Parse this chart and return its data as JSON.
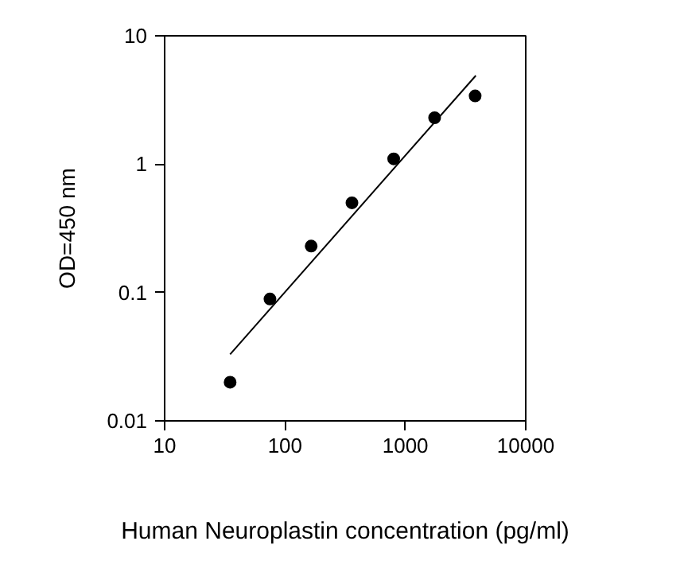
{
  "chart_data": {
    "type": "scatter",
    "xlabel": "Human Neuroplastin concentration (pg/ml)",
    "ylabel": "OD=450 nm",
    "log": "xy",
    "grid": false,
    "xlim": [
      10,
      10000
    ],
    "xticks": [
      10,
      100,
      1000,
      10000
    ],
    "ylim": [
      0.01,
      10
    ],
    "yticks": [
      0.01,
      0.1,
      1,
      10
    ],
    "x": [
      35,
      75,
      165,
      360,
      800,
      1750,
      3800
    ],
    "series": [
      {
        "color": "#000000",
        "marker": "circle",
        "values": [
          0.02,
          0.089,
          0.23,
          0.5,
          1.1,
          2.3,
          3.4
        ]
      },
      {
        "type": "line",
        "color": "#000000",
        "marker": "none",
        "x": [
          35,
          3850
        ],
        "values": [
          0.033,
          4.9
        ]
      }
    ]
  }
}
